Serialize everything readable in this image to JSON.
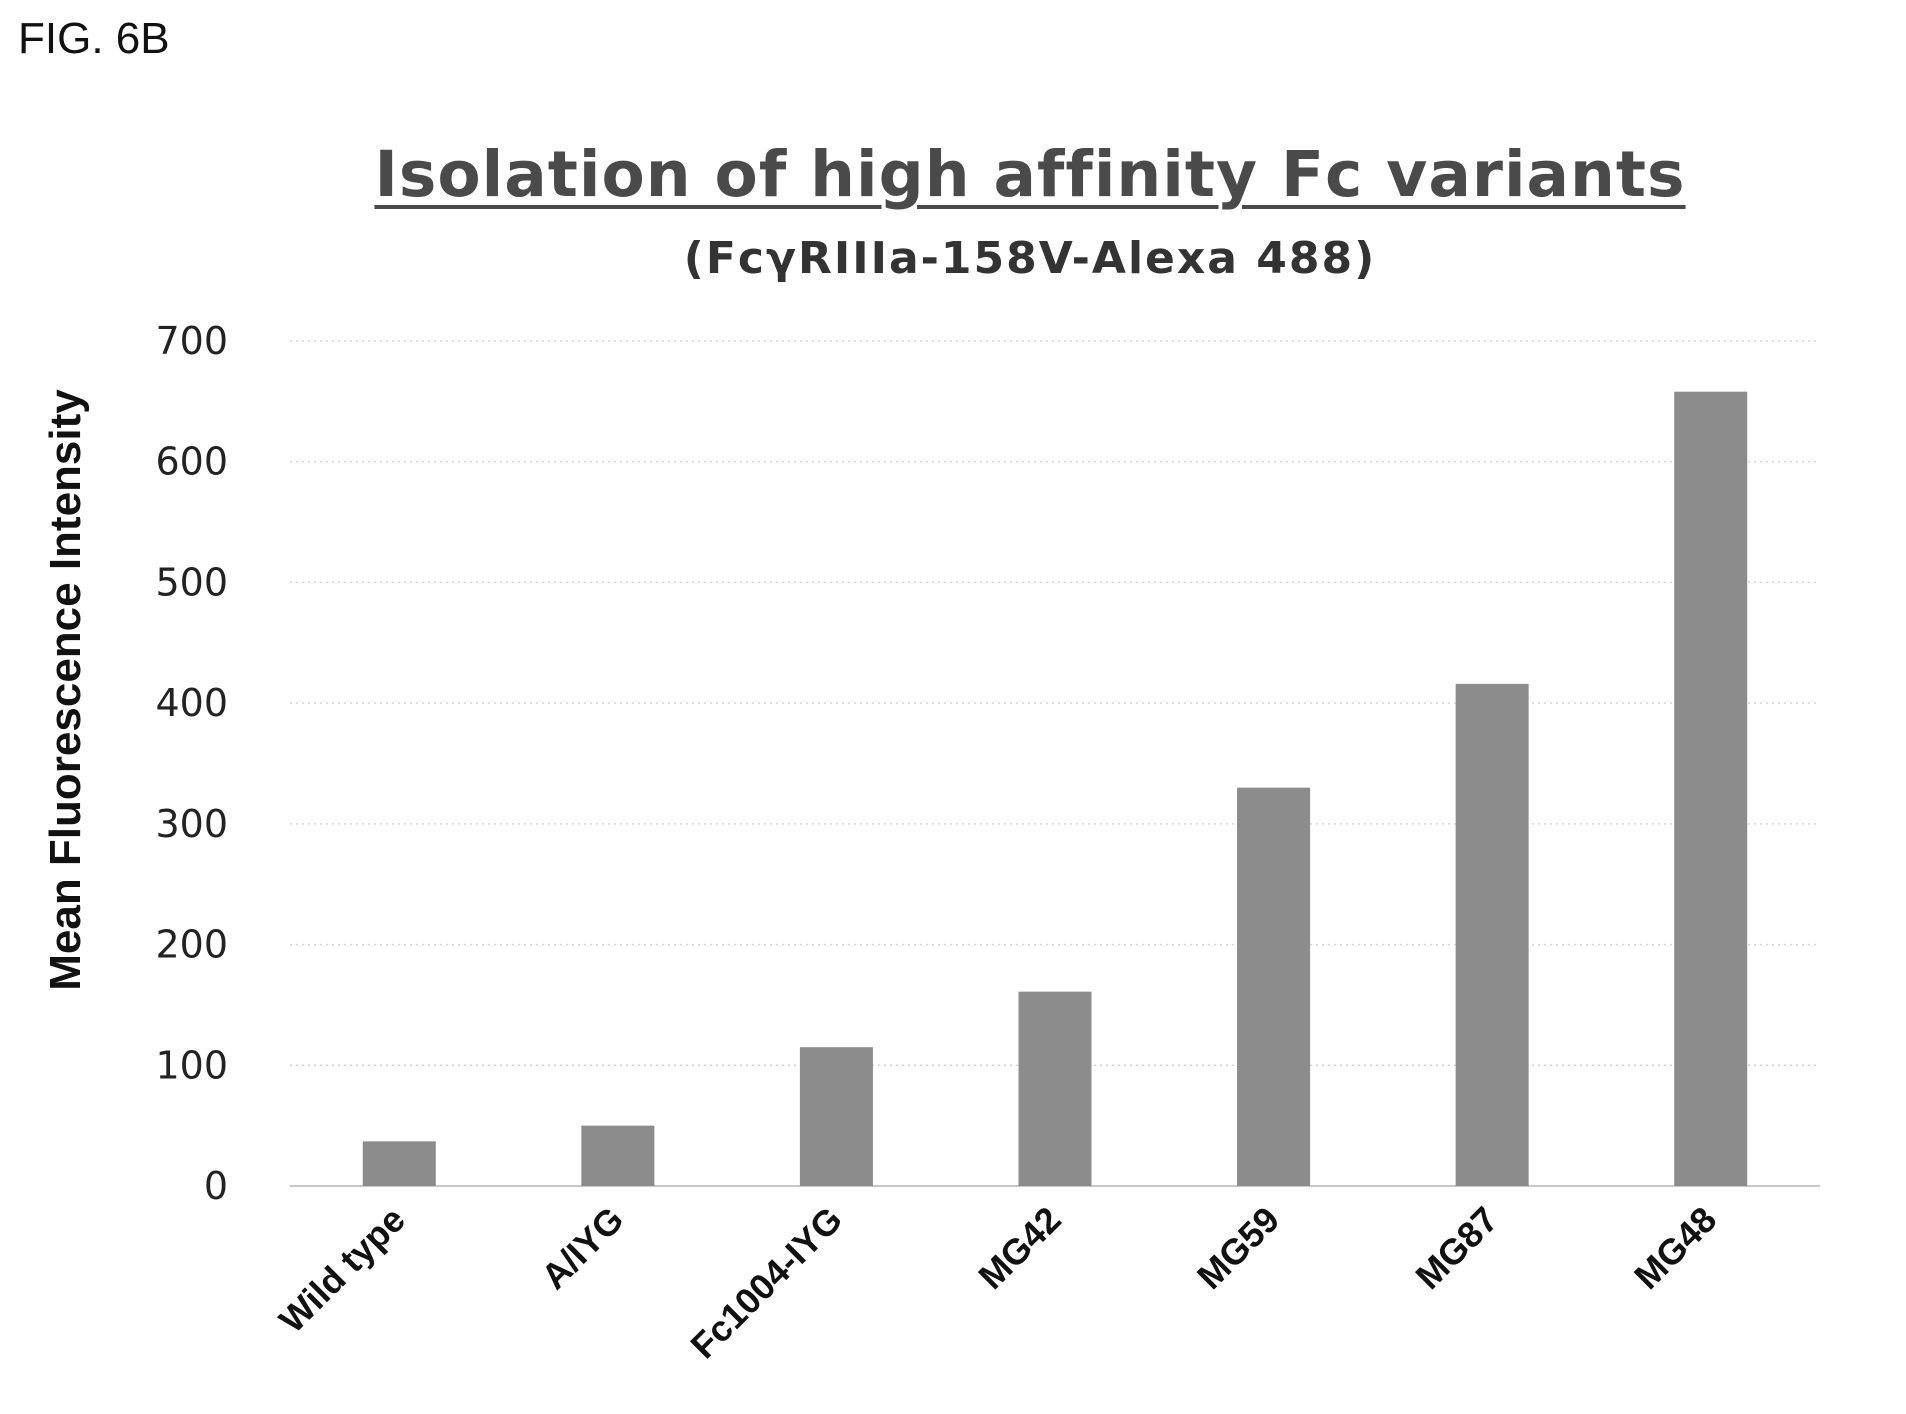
{
  "figure": {
    "label": "FIG. 6B"
  },
  "chart_data": {
    "type": "bar",
    "title": "Isolation of high affinity Fc variants",
    "subtitle": "(FcγRIIIa-158V-Alexa 488)",
    "xlabel": "",
    "ylabel": "Mean Fluorescence Intensity",
    "categories": [
      "Wild type",
      "A/IYG",
      "Fc1004-IYG",
      "MG42",
      "MG59",
      "MG87",
      "MG48"
    ],
    "values": [
      37,
      50,
      115,
      161,
      330,
      416,
      658
    ],
    "ylim": [
      0,
      700
    ],
    "yticks": [
      0,
      100,
      200,
      300,
      400,
      500,
      600,
      700
    ],
    "grid": true,
    "legend": "none",
    "bar_color": "#8c8c8c"
  }
}
